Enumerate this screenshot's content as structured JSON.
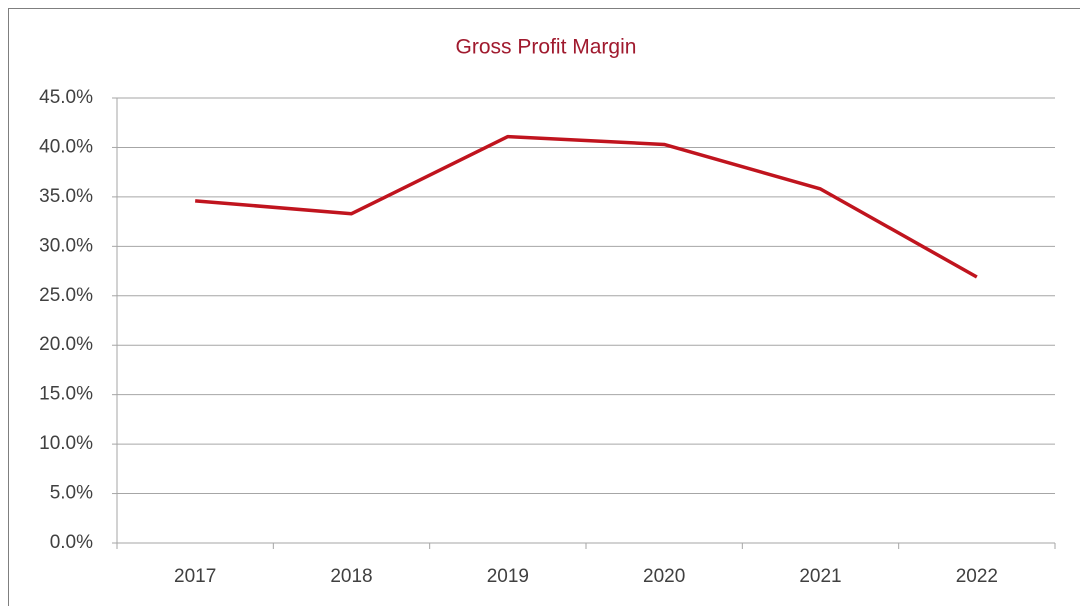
{
  "chart_data": {
    "type": "line",
    "title": "Gross Profit Margin",
    "categories": [
      "2017",
      "2018",
      "2019",
      "2020",
      "2021",
      "2022"
    ],
    "values": [
      34.6,
      33.3,
      41.1,
      40.3,
      35.8,
      26.9
    ],
    "color": "#c0141e",
    "ylim": [
      0,
      45
    ],
    "yticks": [
      {
        "value": 0,
        "label": "0.0%"
      },
      {
        "value": 5,
        "label": "5.0%"
      },
      {
        "value": 10,
        "label": "10.0%"
      },
      {
        "value": 15,
        "label": "15.0%"
      },
      {
        "value": 20,
        "label": "20.0%"
      },
      {
        "value": 25,
        "label": "25.0%"
      },
      {
        "value": 30,
        "label": "30.0%"
      },
      {
        "value": 35,
        "label": "35.0%"
      },
      {
        "value": 40,
        "label": "40.0%"
      },
      {
        "value": 45,
        "label": "45.0%"
      }
    ],
    "grid": true
  }
}
